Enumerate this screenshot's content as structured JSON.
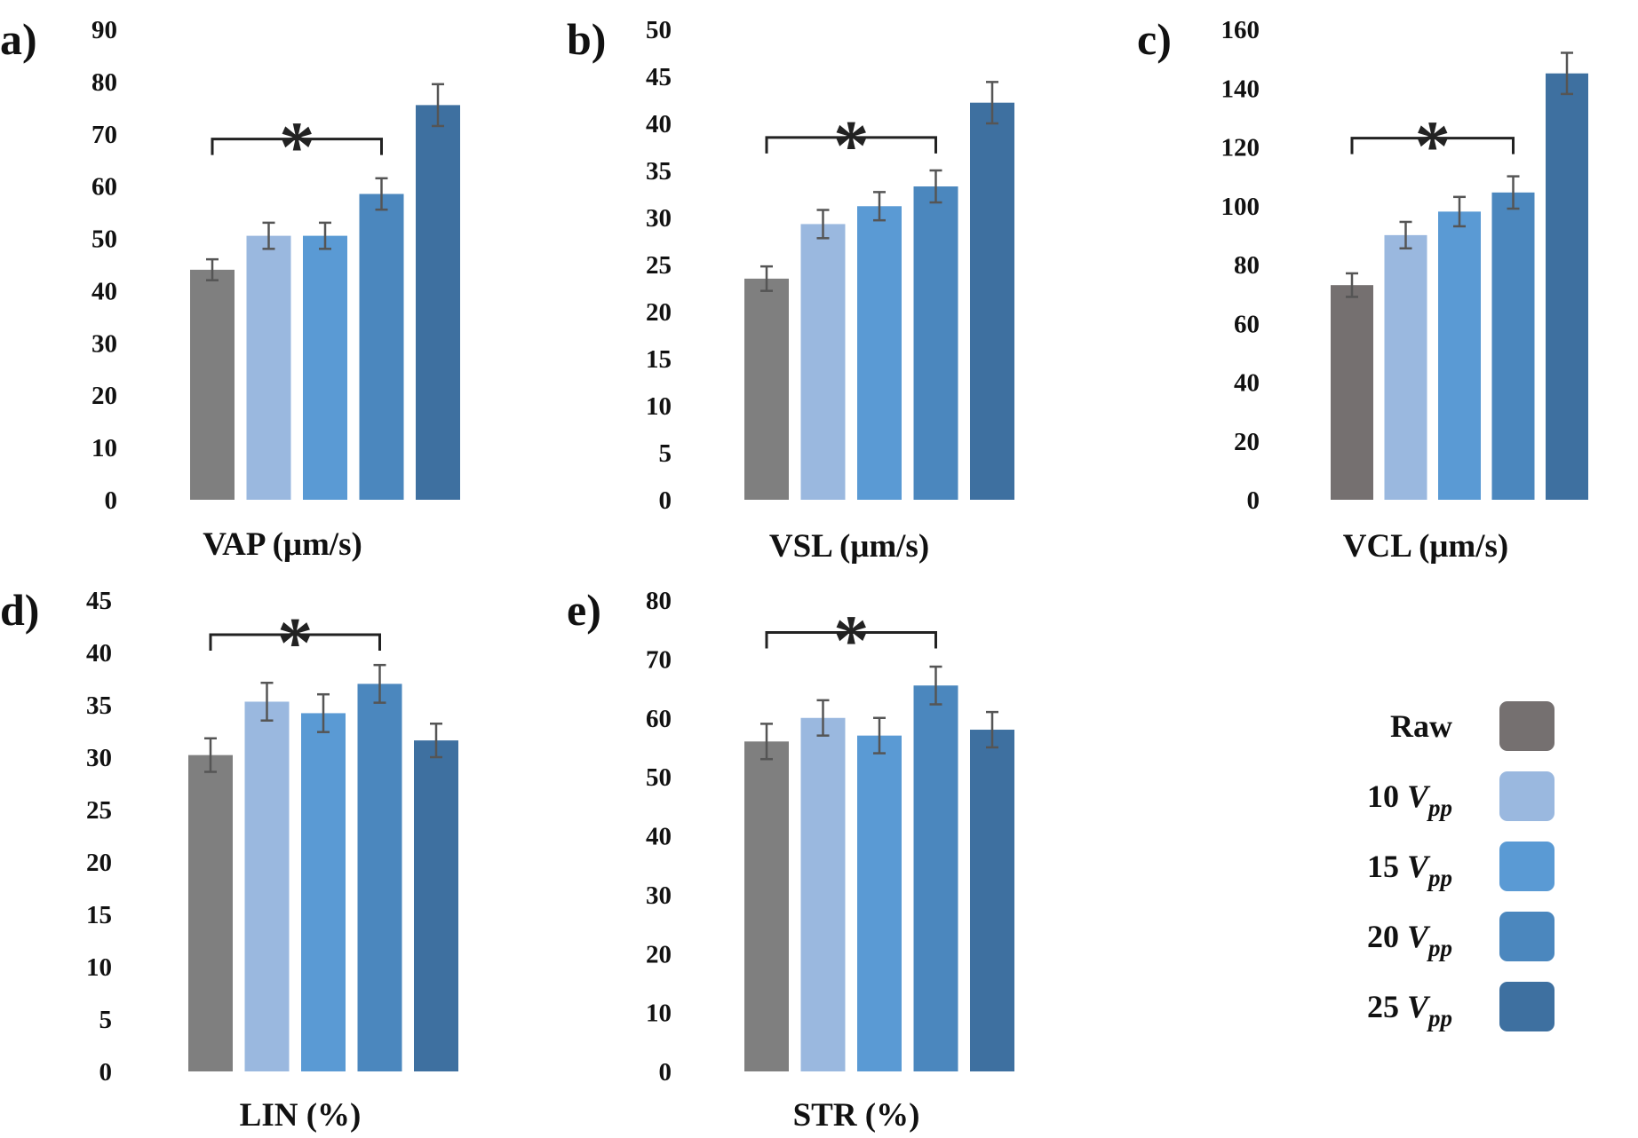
{
  "legend": [
    {
      "label": "Raw",
      "color": "#757070"
    },
    {
      "label": "10 V_pp",
      "color": "#9ab8df"
    },
    {
      "label": "15 V_pp",
      "color": "#5a9ad4"
    },
    {
      "label": "20 V_pp",
      "color": "#4b87be"
    },
    {
      "label": "25 V_pp",
      "color": "#3e70a0"
    }
  ],
  "chart_data": [
    {
      "type": "bar",
      "panel_label": "a)",
      "xlabel": "VAP (μm/s)",
      "ylim": [
        0,
        90
      ],
      "yticks": [
        0,
        10,
        20,
        30,
        40,
        50,
        60,
        70,
        80,
        90
      ],
      "categories": [
        "Raw",
        "10 V_pp",
        "15 V_pp",
        "20 V_pp",
        "25 V_pp"
      ],
      "values": [
        44,
        50.5,
        50.5,
        58.5,
        75.5
      ],
      "errors": [
        2,
        2.5,
        2.5,
        3,
        4
      ],
      "colors": [
        "#7f7f7f",
        "#9ab8df",
        "#5a9ad4",
        "#4b87be",
        "#3e70a0"
      ],
      "significance": {
        "from": 0,
        "to": 3,
        "y": 69,
        "symbol": "*"
      }
    },
    {
      "type": "bar",
      "panel_label": "b)",
      "xlabel": "VSL (μm/s)",
      "ylim": [
        0,
        50
      ],
      "yticks": [
        0,
        5,
        10,
        15,
        20,
        25,
        30,
        35,
        40,
        45,
        50
      ],
      "categories": [
        "Raw",
        "10 V_pp",
        "15 V_pp",
        "20 V_pp",
        "25 V_pp"
      ],
      "values": [
        23.5,
        29.3,
        31.2,
        33.3,
        42.2
      ],
      "errors": [
        1.3,
        1.5,
        1.5,
        1.7,
        2.2
      ],
      "colors": [
        "#7f7f7f",
        "#9ab8df",
        "#5a9ad4",
        "#4b87be",
        "#3e70a0"
      ],
      "significance": {
        "from": 0,
        "to": 3,
        "y": 38.5,
        "symbol": "*"
      }
    },
    {
      "type": "bar",
      "panel_label": "c)",
      "xlabel": "VCL (μm/s)",
      "ylim": [
        0,
        160
      ],
      "yticks": [
        0,
        20,
        40,
        60,
        80,
        100,
        120,
        140,
        160
      ],
      "categories": [
        "Raw",
        "10 V_pp",
        "15 V_pp",
        "20 V_pp",
        "25 V_pp"
      ],
      "values": [
        73,
        90,
        98,
        104.5,
        145
      ],
      "errors": [
        4,
        4.5,
        5,
        5.5,
        7
      ],
      "colors": [
        "#757070",
        "#9ab8df",
        "#5a9ad4",
        "#4b87be",
        "#3e70a0"
      ],
      "significance": {
        "from": 0,
        "to": 3,
        "y": 123,
        "symbol": "*"
      }
    },
    {
      "type": "bar",
      "panel_label": "d)",
      "xlabel": "LIN (%)",
      "ylim": [
        0,
        45
      ],
      "yticks": [
        0,
        5,
        10,
        15,
        20,
        25,
        30,
        35,
        40,
        45
      ],
      "categories": [
        "Raw",
        "10 V_pp",
        "15 V_pp",
        "20 V_pp",
        "25 V_pp"
      ],
      "values": [
        30.2,
        35.3,
        34.2,
        37,
        31.6
      ],
      "errors": [
        1.6,
        1.8,
        1.8,
        1.8,
        1.6
      ],
      "colors": [
        "#7f7f7f",
        "#9ab8df",
        "#5a9ad4",
        "#4b87be",
        "#3e70a0"
      ],
      "significance": {
        "from": 0,
        "to": 3,
        "y": 41.7,
        "symbol": "*"
      }
    },
    {
      "type": "bar",
      "panel_label": "e)",
      "xlabel": "STR (%)",
      "ylim": [
        0,
        80
      ],
      "yticks": [
        0,
        10,
        20,
        30,
        40,
        50,
        60,
        70,
        80
      ],
      "categories": [
        "Raw",
        "10 V_pp",
        "15 V_pp",
        "20 V_pp",
        "25 V_pp"
      ],
      "values": [
        56,
        60,
        57,
        65.5,
        58
      ],
      "errors": [
        3,
        3,
        3,
        3.2,
        3
      ],
      "colors": [
        "#7f7f7f",
        "#9ab8df",
        "#5a9ad4",
        "#4b87be",
        "#3e70a0"
      ],
      "significance": {
        "from": 0,
        "to": 3,
        "y": 74.5,
        "symbol": "*"
      }
    }
  ]
}
